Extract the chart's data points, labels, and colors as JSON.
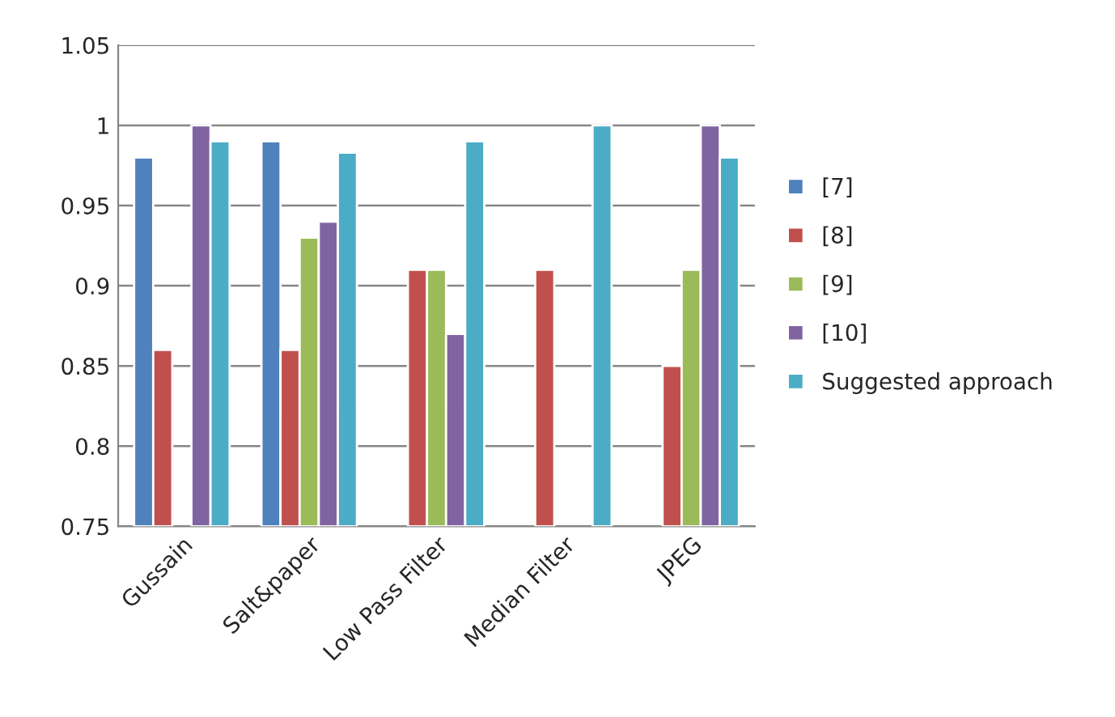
{
  "chart_data": {
    "type": "bar",
    "categories": [
      "Gussain",
      "Salt&paper",
      "Low Pass Filter",
      "Median Filter",
      "JPEG"
    ],
    "series": [
      {
        "name": "[7]",
        "color": "#4f81bd",
        "values": [
          0.98,
          0.99,
          null,
          null,
          null
        ]
      },
      {
        "name": "[8]",
        "color": "#c0504d",
        "values": [
          0.86,
          0.86,
          0.91,
          0.91,
          0.85
        ]
      },
      {
        "name": "[9]",
        "color": "#9bbb59",
        "values": [
          null,
          0.93,
          0.91,
          null,
          0.91
        ]
      },
      {
        "name": "[10]",
        "color": "#8064a2",
        "values": [
          1.0,
          0.94,
          0.87,
          null,
          1.0
        ]
      },
      {
        "name": "Suggested approach",
        "color": "#4bacc6",
        "values": [
          0.99,
          0.983,
          0.99,
          1.0,
          0.98
        ]
      }
    ],
    "ylim": [
      0.75,
      1.05
    ],
    "yticks": [
      0.75,
      0.8,
      0.85,
      0.9,
      0.95,
      1,
      1.05
    ],
    "grid": "y",
    "legend": "right"
  }
}
